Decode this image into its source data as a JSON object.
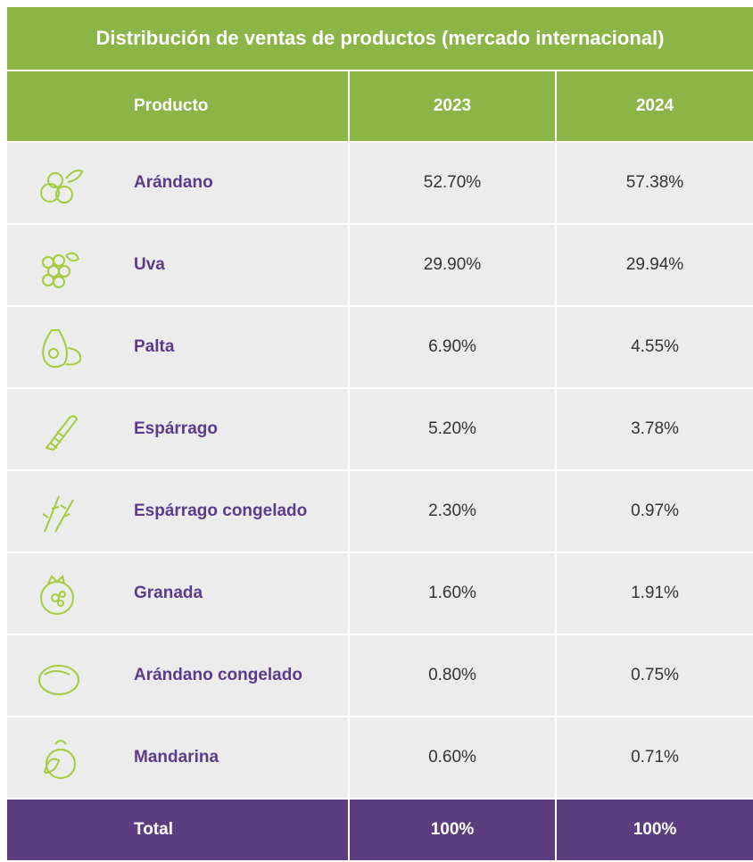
{
  "title": "Distribución de ventas de productos (mercado internacional)",
  "table": {
    "header": [
      "Producto",
      "2023",
      "2024"
    ],
    "rows": [
      [
        "Arándano",
        "52.70%",
        "57.38%"
      ],
      [
        "Uva",
        "29.90%",
        "29.94%"
      ],
      [
        "Palta",
        "6.90%",
        "4.55%"
      ],
      [
        "Espárrago",
        "5.20%",
        "3.78%"
      ],
      [
        "Espárrago congelado",
        "2.30%",
        "0.97%"
      ],
      [
        "Granada",
        "1.60%",
        "1.91%"
      ],
      [
        "Arándano congelado",
        "0.80%",
        "0.75%"
      ],
      [
        "Mandarina",
        "0.60%",
        "0.71%"
      ]
    ],
    "total": [
      "Total",
      "100%",
      "100%"
    ]
  }
}
